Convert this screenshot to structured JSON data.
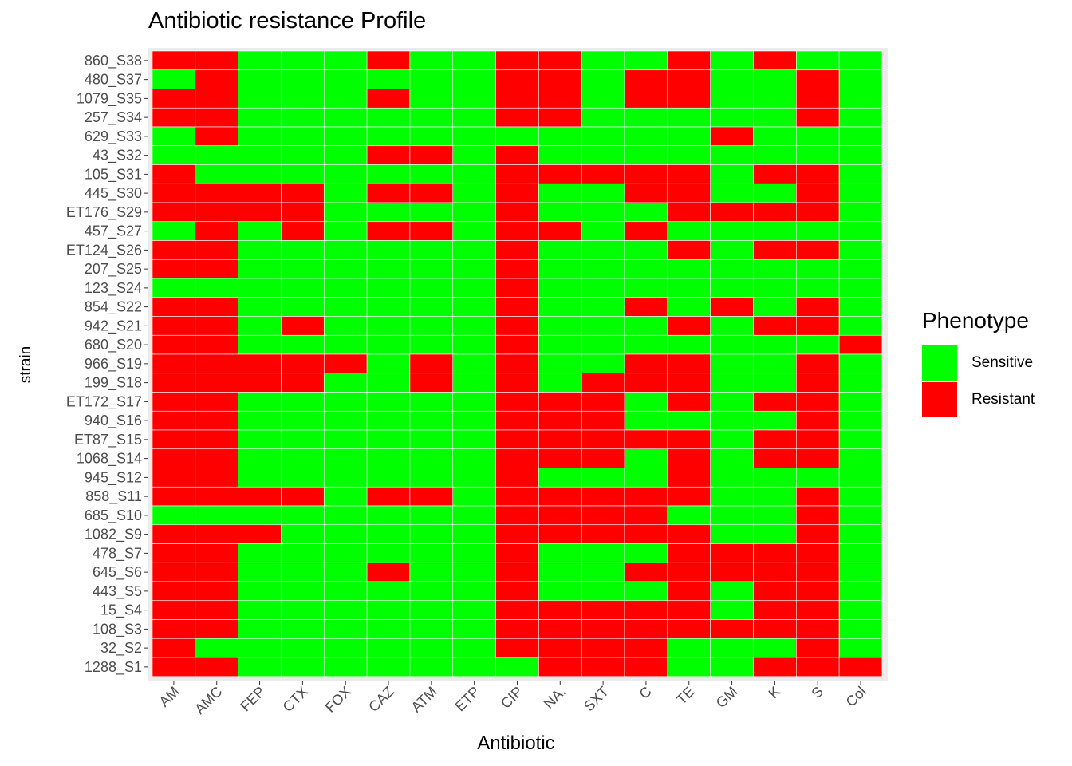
{
  "chart_data": {
    "type": "heatmap",
    "title": "Antibiotic resistance Profile",
    "xlabel": "Antibiotic",
    "ylabel": "strain",
    "x_categories": [
      "AM",
      "AMC",
      "FEP",
      "CTX",
      "FOX",
      "CAZ",
      "ATM",
      "ETP",
      "CIP",
      "NA.",
      "SXT",
      "C",
      "TE",
      "GM",
      "K",
      "S",
      "Col"
    ],
    "y_categories": [
      "860_S38",
      "480_S37",
      "1079_S35",
      "257_S34",
      "629_S33",
      "43_S32",
      "105_S31",
      "445_S30",
      "ET176_S29",
      "457_S27",
      "ET124_S26",
      "207_S25",
      "123_S24",
      "854_S22",
      "942_S21",
      "680_S20",
      "966_S19",
      "199_S18",
      "ET172_S17",
      "940_S16",
      "ET87_S15",
      "1068_S14",
      "945_S12",
      "858_S11",
      "685_S10",
      "1082_S9",
      "478_S7",
      "645_S6",
      "443_S5",
      "15_S4",
      "108_S3",
      "32_S2",
      "1288_S1"
    ],
    "values": [
      "RRSSSRSSRRSSRSRSS",
      "SRSSSSSSRRSRRSSRS",
      "RRSSSRSSRRSRRSSRS",
      "RRSSSSSSRRSSSSSRS",
      "SRSSSSSSSSSSSRSSS",
      "SSSSSRRSRSSSSSSSS",
      "RSSSSSSSRRRRRSRRS",
      "RRRRSRRSRSSRRSSRS",
      "RRRRSSSSRSSSRRRRS",
      "SRSRSRRSRRSRSSSSS",
      "RRSSSSSSRSSSRSRRS",
      "RRSSSSSSRSSSSSSSS",
      "SSSSSSSSRSSSSSSSS",
      "RRSSSSSSRSSRSRSRS",
      "RRSRSSSSRSSSRSRRS",
      "RRSSSSSSRSSSSSSSR",
      "RRRRRSRSRSSRRSSRS",
      "RRRRSSRSRSRRRSSRS",
      "RRSSSSSSRRRSRSRRS",
      "RRSSSSSSRRRSSSSRS",
      "RRSSSSSSRRRRRSRRS",
      "RRSSSSSSRRRSRSRRS",
      "RRSSSSSSRSSSRSSSS",
      "RRRRSRRSRRRRRSSRS",
      "SSSSSSSSRRRRSSSRS",
      "RRRSSSSSRRRRRSSRS",
      "RRSSSSSSRSSSRRRRS",
      "RRSSSRSSRSSRRRRRS",
      "RRSSSSSSRSSSRSRRS",
      "RRSSSSSSRRRRRSRRS",
      "RRSSSSSSRRRRRRRRS",
      "RSSSSSSSRRRRSSSRS",
      "RRSSSSSSSRRRSSRRR"
    ],
    "code_map": {
      "S": "Sensitive",
      "R": "Resistant"
    },
    "legend": {
      "title": "Phenotype",
      "position": "right",
      "entries": [
        {
          "label": "Sensitive",
          "color": "#00ff00"
        },
        {
          "label": "Resistant",
          "color": "#ff0000"
        }
      ]
    },
    "colors": {
      "Sensitive": "#00ff00",
      "Resistant": "#ff0000",
      "panel": "#ebebeb",
      "cell_border": "#ffffff"
    }
  }
}
